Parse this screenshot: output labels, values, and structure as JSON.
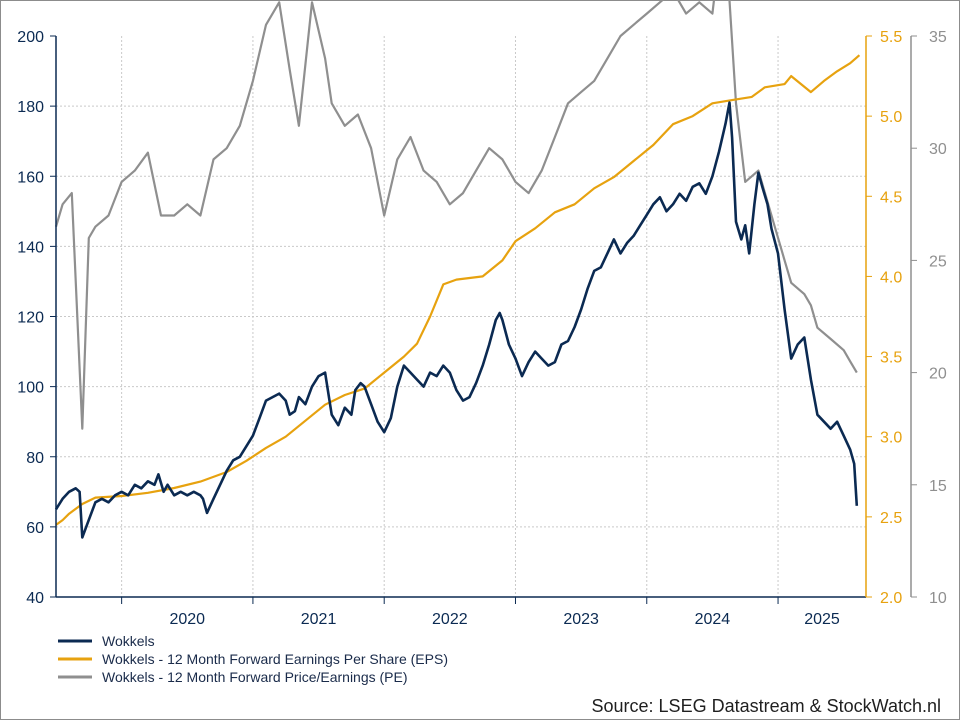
{
  "chart_data": {
    "type": "line",
    "source": "Source: LSEG Datastream & StockWatch.nl",
    "x_ticks": [
      "2020",
      "2021",
      "2022",
      "2023",
      "2024",
      "2025"
    ],
    "x_range": [
      2019.5,
      2025.67
    ],
    "grid": true,
    "legend_position": "bottom-left",
    "axes": {
      "left": {
        "min": 40,
        "max": 200,
        "ticks": [
          "40",
          "60",
          "80",
          "100",
          "120",
          "140",
          "160",
          "180",
          "200"
        ],
        "color": "#0b2a52"
      },
      "right1": {
        "min": 2.0,
        "max": 5.5,
        "ticks": [
          "2.0",
          "2.5",
          "3.0",
          "3.5",
          "4.0",
          "4.5",
          "5.0",
          "5.5"
        ],
        "color": "#e7a20f"
      },
      "right2": {
        "min": 10,
        "max": 35,
        "ticks": [
          "10",
          "15",
          "20",
          "25",
          "30",
          "35"
        ],
        "color": "#8f8f8f"
      }
    },
    "series": [
      {
        "name": "Wokkels",
        "axis": "left",
        "color": "#0b2a52",
        "points": [
          [
            2019.5,
            65
          ],
          [
            2019.55,
            68
          ],
          [
            2019.6,
            70
          ],
          [
            2019.65,
            71
          ],
          [
            2019.68,
            70
          ],
          [
            2019.7,
            57
          ],
          [
            2019.75,
            62
          ],
          [
            2019.8,
            67
          ],
          [
            2019.85,
            68
          ],
          [
            2019.9,
            67
          ],
          [
            2019.95,
            69
          ],
          [
            2020.0,
            70
          ],
          [
            2020.05,
            69
          ],
          [
            2020.1,
            72
          ],
          [
            2020.15,
            71
          ],
          [
            2020.2,
            73
          ],
          [
            2020.25,
            72
          ],
          [
            2020.28,
            75
          ],
          [
            2020.32,
            70
          ],
          [
            2020.35,
            72
          ],
          [
            2020.4,
            69
          ],
          [
            2020.45,
            70
          ],
          [
            2020.5,
            69
          ],
          [
            2020.55,
            70
          ],
          [
            2020.6,
            69
          ],
          [
            2020.62,
            68
          ],
          [
            2020.65,
            64
          ],
          [
            2020.7,
            68
          ],
          [
            2020.75,
            72
          ],
          [
            2020.8,
            76
          ],
          [
            2020.85,
            79
          ],
          [
            2020.9,
            80
          ],
          [
            2020.95,
            83
          ],
          [
            2021.0,
            86
          ],
          [
            2021.05,
            91
          ],
          [
            2021.1,
            96
          ],
          [
            2021.15,
            97
          ],
          [
            2021.2,
            98
          ],
          [
            2021.25,
            96
          ],
          [
            2021.28,
            92
          ],
          [
            2021.32,
            93
          ],
          [
            2021.35,
            97
          ],
          [
            2021.4,
            95
          ],
          [
            2021.45,
            100
          ],
          [
            2021.5,
            103
          ],
          [
            2021.55,
            104
          ],
          [
            2021.6,
            92
          ],
          [
            2021.65,
            89
          ],
          [
            2021.7,
            94
          ],
          [
            2021.75,
            92
          ],
          [
            2021.78,
            99
          ],
          [
            2021.82,
            101
          ],
          [
            2021.85,
            100
          ],
          [
            2021.9,
            95
          ],
          [
            2021.95,
            90
          ],
          [
            2022.0,
            87
          ],
          [
            2022.05,
            91
          ],
          [
            2022.1,
            100
          ],
          [
            2022.15,
            106
          ],
          [
            2022.2,
            104
          ],
          [
            2022.25,
            102
          ],
          [
            2022.3,
            100
          ],
          [
            2022.35,
            104
          ],
          [
            2022.4,
            103
          ],
          [
            2022.45,
            106
          ],
          [
            2022.5,
            104
          ],
          [
            2022.55,
            99
          ],
          [
            2022.6,
            96
          ],
          [
            2022.65,
            97
          ],
          [
            2022.7,
            101
          ],
          [
            2022.75,
            106
          ],
          [
            2022.8,
            112
          ],
          [
            2022.85,
            119
          ],
          [
            2022.88,
            121
          ],
          [
            2022.9,
            119
          ],
          [
            2022.95,
            112
          ],
          [
            2023.0,
            108
          ],
          [
            2023.05,
            103
          ],
          [
            2023.1,
            107
          ],
          [
            2023.15,
            110
          ],
          [
            2023.2,
            108
          ],
          [
            2023.25,
            106
          ],
          [
            2023.3,
            107
          ],
          [
            2023.35,
            112
          ],
          [
            2023.4,
            113
          ],
          [
            2023.45,
            117
          ],
          [
            2023.5,
            122
          ],
          [
            2023.55,
            128
          ],
          [
            2023.6,
            133
          ],
          [
            2023.65,
            134
          ],
          [
            2023.7,
            138
          ],
          [
            2023.75,
            142
          ],
          [
            2023.8,
            138
          ],
          [
            2023.85,
            141
          ],
          [
            2023.9,
            143
          ],
          [
            2023.95,
            146
          ],
          [
            2024.0,
            149
          ],
          [
            2024.05,
            152
          ],
          [
            2024.1,
            154
          ],
          [
            2024.15,
            150
          ],
          [
            2024.2,
            152
          ],
          [
            2024.25,
            155
          ],
          [
            2024.3,
            153
          ],
          [
            2024.35,
            157
          ],
          [
            2024.4,
            158
          ],
          [
            2024.45,
            155
          ],
          [
            2024.5,
            160
          ],
          [
            2024.55,
            167
          ],
          [
            2024.6,
            175
          ],
          [
            2024.63,
            181
          ],
          [
            2024.65,
            171
          ],
          [
            2024.68,
            147
          ],
          [
            2024.72,
            142
          ],
          [
            2024.75,
            146
          ],
          [
            2024.78,
            138
          ],
          [
            2024.82,
            152
          ],
          [
            2024.85,
            161
          ],
          [
            2024.88,
            157
          ],
          [
            2024.92,
            152
          ],
          [
            2024.95,
            145
          ],
          [
            2025.0,
            138
          ],
          [
            2025.05,
            122
          ],
          [
            2025.1,
            108
          ],
          [
            2025.15,
            112
          ],
          [
            2025.2,
            114
          ],
          [
            2025.25,
            102
          ],
          [
            2025.3,
            92
          ],
          [
            2025.35,
            90
          ],
          [
            2025.4,
            88
          ],
          [
            2025.45,
            90
          ],
          [
            2025.5,
            86
          ],
          [
            2025.55,
            82
          ],
          [
            2025.58,
            78
          ],
          [
            2025.6,
            66
          ]
        ]
      },
      {
        "name": "Wokkels - 12 Month Forward Earnings Per Share (EPS)",
        "axis": "right1",
        "color": "#e7a20f",
        "points": [
          [
            2019.5,
            2.45
          ],
          [
            2019.55,
            2.48
          ],
          [
            2019.6,
            2.52
          ],
          [
            2019.7,
            2.58
          ],
          [
            2019.8,
            2.62
          ],
          [
            2020.0,
            2.63
          ],
          [
            2020.2,
            2.65
          ],
          [
            2020.4,
            2.68
          ],
          [
            2020.6,
            2.72
          ],
          [
            2020.8,
            2.78
          ],
          [
            2020.95,
            2.85
          ],
          [
            2021.1,
            2.93
          ],
          [
            2021.25,
            3.0
          ],
          [
            2021.4,
            3.1
          ],
          [
            2021.55,
            3.2
          ],
          [
            2021.7,
            3.26
          ],
          [
            2021.85,
            3.3
          ],
          [
            2022.0,
            3.4
          ],
          [
            2022.15,
            3.5
          ],
          [
            2022.25,
            3.58
          ],
          [
            2022.35,
            3.75
          ],
          [
            2022.45,
            3.95
          ],
          [
            2022.55,
            3.98
          ],
          [
            2022.75,
            4.0
          ],
          [
            2022.9,
            4.1
          ],
          [
            2023.0,
            4.22
          ],
          [
            2023.15,
            4.3
          ],
          [
            2023.3,
            4.4
          ],
          [
            2023.45,
            4.45
          ],
          [
            2023.6,
            4.55
          ],
          [
            2023.75,
            4.62
          ],
          [
            2023.9,
            4.72
          ],
          [
            2024.05,
            4.82
          ],
          [
            2024.2,
            4.95
          ],
          [
            2024.35,
            5.0
          ],
          [
            2024.5,
            5.08
          ],
          [
            2024.65,
            5.1
          ],
          [
            2024.8,
            5.12
          ],
          [
            2024.9,
            5.18
          ],
          [
            2025.05,
            5.2
          ],
          [
            2025.1,
            5.25
          ],
          [
            2025.25,
            5.15
          ],
          [
            2025.35,
            5.22
          ],
          [
            2025.45,
            5.28
          ],
          [
            2025.55,
            5.33
          ],
          [
            2025.62,
            5.38
          ]
        ]
      },
      {
        "name": "Wokkels - 12 Month Forward Price/Earnings (PE)",
        "axis": "right2",
        "color": "#8f8f8f",
        "points": [
          [
            2019.5,
            26.5
          ],
          [
            2019.55,
            27.5
          ],
          [
            2019.62,
            28.0
          ],
          [
            2019.7,
            17.5
          ],
          [
            2019.75,
            26.0
          ],
          [
            2019.8,
            26.5
          ],
          [
            2019.9,
            27.0
          ],
          [
            2020.0,
            28.5
          ],
          [
            2020.1,
            29.0
          ],
          [
            2020.2,
            29.8
          ],
          [
            2020.3,
            27.0
          ],
          [
            2020.4,
            27.0
          ],
          [
            2020.5,
            27.5
          ],
          [
            2020.6,
            27.0
          ],
          [
            2020.7,
            29.5
          ],
          [
            2020.8,
            30.0
          ],
          [
            2020.9,
            31.0
          ],
          [
            2021.0,
            33.0
          ],
          [
            2021.1,
            35.5
          ],
          [
            2021.2,
            36.5
          ],
          [
            2021.28,
            33.5
          ],
          [
            2021.35,
            31.0
          ],
          [
            2021.45,
            36.5
          ],
          [
            2021.55,
            34.0
          ],
          [
            2021.6,
            32.0
          ],
          [
            2021.7,
            31.0
          ],
          [
            2021.8,
            31.5
          ],
          [
            2021.9,
            30.0
          ],
          [
            2022.0,
            27.0
          ],
          [
            2022.1,
            29.5
          ],
          [
            2022.2,
            30.5
          ],
          [
            2022.3,
            29.0
          ],
          [
            2022.4,
            28.5
          ],
          [
            2022.5,
            27.5
          ],
          [
            2022.6,
            28.0
          ],
          [
            2022.7,
            29.0
          ],
          [
            2022.8,
            30.0
          ],
          [
            2022.9,
            29.5
          ],
          [
            2023.0,
            28.5
          ],
          [
            2023.1,
            28.0
          ],
          [
            2023.2,
            29.0
          ],
          [
            2023.3,
            30.5
          ],
          [
            2023.4,
            32.0
          ],
          [
            2023.5,
            32.5
          ],
          [
            2023.6,
            33.0
          ],
          [
            2023.7,
            34.0
          ],
          [
            2023.8,
            35.0
          ],
          [
            2023.9,
            35.5
          ],
          [
            2024.0,
            36.0
          ],
          [
            2024.1,
            36.5
          ],
          [
            2024.2,
            37.0
          ],
          [
            2024.3,
            36.0
          ],
          [
            2024.4,
            36.5
          ],
          [
            2024.5,
            36.0
          ],
          [
            2024.55,
            38.5
          ],
          [
            2024.62,
            37.5
          ],
          [
            2024.68,
            32.0
          ],
          [
            2024.75,
            28.5
          ],
          [
            2024.85,
            29.0
          ],
          [
            2024.95,
            27.0
          ],
          [
            2025.05,
            25.0
          ],
          [
            2025.1,
            24.0
          ],
          [
            2025.2,
            23.5
          ],
          [
            2025.25,
            23.0
          ],
          [
            2025.3,
            22.0
          ],
          [
            2025.4,
            21.5
          ],
          [
            2025.5,
            21.0
          ],
          [
            2025.55,
            20.5
          ],
          [
            2025.6,
            20.0
          ]
        ]
      }
    ]
  }
}
